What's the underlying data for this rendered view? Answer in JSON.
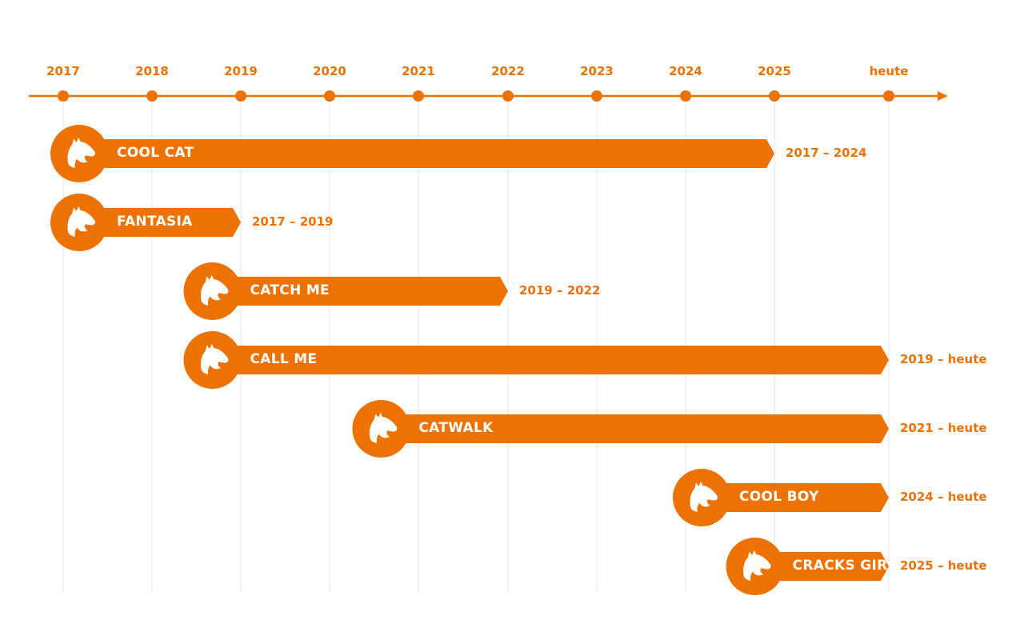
{
  "timeline": {
    "ticks": [
      "2017",
      "2018",
      "2019",
      "2020",
      "2021",
      "2022",
      "2023",
      "2024",
      "2025",
      "heute"
    ],
    "accent_color": "#ee7203",
    "grid_color": "#e6e6e6"
  },
  "horses": [
    {
      "name": "COOL CAT",
      "range": "2017 – 2024",
      "start": "2017",
      "end": "2025"
    },
    {
      "name": "FANTASIA",
      "range": "2017 – 2019",
      "start": "2017",
      "end": "2019"
    },
    {
      "name": "CATCH ME",
      "range": "2019 – 2022",
      "start": "2018.5",
      "end": "2022"
    },
    {
      "name": "CALL ME",
      "range": "2019 – heute",
      "start": "2018.5",
      "end": "heute"
    },
    {
      "name": "CATWALK",
      "range": "2021 – heute",
      "start": "2020.4",
      "end": "heute"
    },
    {
      "name": "COOL BOY",
      "range": "2024 – heute",
      "start": "2024",
      "end": "heute"
    },
    {
      "name": "CRACKS GIRL",
      "range": "2025 – heute",
      "start": "2024.6",
      "end": "heute"
    }
  ],
  "icons": {
    "horse": "horse-head-icon"
  }
}
